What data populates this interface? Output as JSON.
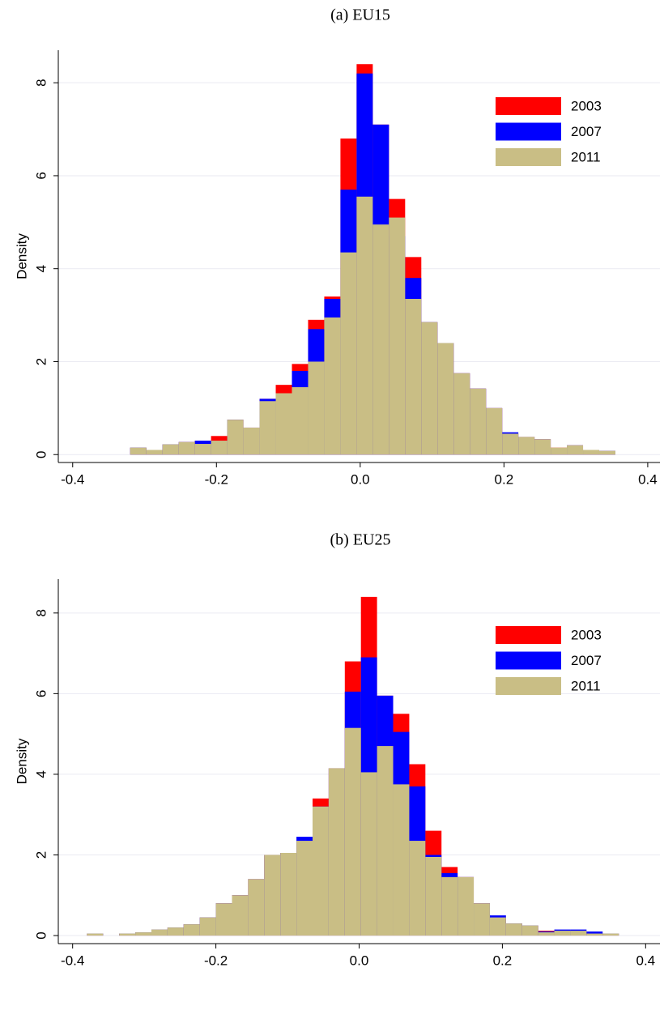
{
  "chart_data": [
    {
      "type": "histogram",
      "title": "(a) EU15",
      "ylabel": "Density",
      "bins": [
        -0.32,
        -0.2975,
        -0.275,
        -0.2525,
        -0.23,
        -0.2075,
        -0.185,
        -0.1625,
        -0.14,
        -0.1175,
        -0.095,
        -0.0725,
        -0.05,
        -0.0275,
        -0.005,
        0.0175,
        0.04,
        0.0625,
        0.085,
        0.1075,
        0.13,
        0.1525,
        0.175,
        0.1975,
        0.22,
        0.2425,
        0.265,
        0.2875,
        0.31,
        0.3325,
        0.355
      ],
      "series": [
        {
          "name": "2003",
          "color": "#ff0000",
          "values": [
            0.15,
            0.1,
            0.22,
            0.27,
            0.3,
            0.4,
            0.75,
            0.58,
            1.2,
            1.5,
            1.95,
            2.9,
            3.4,
            6.8,
            8.4,
            7.1,
            5.5,
            4.25,
            2.85,
            2.4,
            1.75,
            1.42,
            1.0,
            0.45,
            0.38,
            0.33,
            0.15,
            0.2,
            0.1,
            0.08
          ]
        },
        {
          "name": "2007",
          "color": "#0000ff",
          "values": [
            0.15,
            0.1,
            0.22,
            0.27,
            0.3,
            0.3,
            0.75,
            0.58,
            1.2,
            1.32,
            1.8,
            2.7,
            3.35,
            5.7,
            8.2,
            7.1,
            4.7,
            3.8,
            2.85,
            2.4,
            1.75,
            1.42,
            1.0,
            0.48,
            0.38,
            0.33,
            0.12,
            0.2,
            0.1,
            0.08
          ]
        },
        {
          "name": "2011",
          "color": "#c9be85",
          "values": [
            0.15,
            0.1,
            0.22,
            0.27,
            0.23,
            0.3,
            0.75,
            0.58,
            1.15,
            1.32,
            1.45,
            2.0,
            2.95,
            4.35,
            5.55,
            4.95,
            5.1,
            3.35,
            2.85,
            2.4,
            1.75,
            1.42,
            1.0,
            0.45,
            0.38,
            0.33,
            0.15,
            0.2,
            0.1,
            0.08
          ]
        }
      ],
      "xlim": [
        -0.42,
        0.417
      ],
      "xticks": [
        -0.4,
        -0.2,
        {
          "value": 0,
          "label": "0.0"
        },
        0.2,
        0.4
      ],
      "ylim": [
        -0.17,
        8.7
      ],
      "yticks": [
        0,
        2,
        4,
        6,
        8
      ],
      "grid": true,
      "legend": "upper right"
    },
    {
      "type": "histogram",
      "title": "(b) EU25",
      "ylabel": "Density",
      "bins": [
        -0.38,
        -0.3575,
        -0.335,
        -0.3125,
        -0.29,
        -0.2675,
        -0.245,
        -0.2225,
        -0.2,
        -0.1775,
        -0.155,
        -0.1325,
        -0.11,
        -0.0875,
        -0.065,
        -0.0425,
        -0.02,
        0.0025,
        0.025,
        0.0475,
        0.07,
        0.0925,
        0.115,
        0.1375,
        0.16,
        0.1825,
        0.205,
        0.2275,
        0.25,
        0.2725,
        0.295,
        0.3175,
        0.34,
        0.3625
      ],
      "series": [
        {
          "name": "2003",
          "color": "#ff0000",
          "values": [
            0.05,
            0,
            0.05,
            0.08,
            0.15,
            0.2,
            0.28,
            0.45,
            0.8,
            1.0,
            1.4,
            2.0,
            2.05,
            2.35,
            3.4,
            4.15,
            6.8,
            8.4,
            5.95,
            5.5,
            4.25,
            2.6,
            1.7,
            1.45,
            0.8,
            0.45,
            0.3,
            0.25,
            0.12,
            0.12,
            0.12,
            0.05,
            0.05
          ]
        },
        {
          "name": "2007",
          "color": "#0000ff",
          "values": [
            0.05,
            0,
            0.05,
            0.08,
            0.15,
            0.2,
            0.28,
            0.45,
            0.8,
            1.0,
            1.4,
            2.0,
            2.05,
            2.45,
            3.2,
            4.15,
            6.05,
            6.9,
            5.95,
            5.05,
            3.7,
            2.0,
            1.55,
            1.45,
            0.8,
            0.5,
            0.3,
            0.25,
            0.1,
            0.15,
            0.15,
            0.1,
            0.05
          ]
        },
        {
          "name": "2011",
          "color": "#c9be85",
          "values": [
            0.05,
            0,
            0.05,
            0.08,
            0.15,
            0.2,
            0.28,
            0.45,
            0.8,
            1.0,
            1.4,
            2.0,
            2.05,
            2.35,
            3.2,
            4.15,
            5.15,
            4.05,
            4.7,
            3.75,
            2.35,
            1.95,
            1.45,
            1.45,
            0.8,
            0.45,
            0.3,
            0.25,
            0.08,
            0.12,
            0.12,
            0.05,
            0.05
          ]
        }
      ],
      "xlim": [
        -0.42,
        0.42
      ],
      "xticks": [
        -0.4,
        -0.2,
        {
          "value": 0,
          "label": "0.0"
        },
        0.2,
        0.4
      ],
      "ylim": [
        -0.2,
        8.84
      ],
      "yticks": [
        0,
        2,
        4,
        6,
        8
      ],
      "grid": true,
      "legend": "upper right"
    }
  ]
}
